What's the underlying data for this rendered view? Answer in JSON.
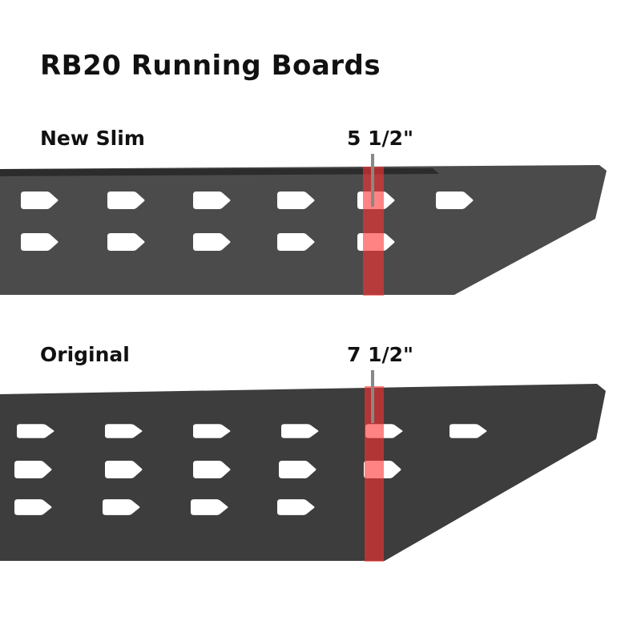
{
  "title": "RB20 Running Boards",
  "boards": [
    {
      "label": "New Slim",
      "measurement": "5 1/2\"",
      "color": "#4a4a4a"
    },
    {
      "label": "Original",
      "measurement": "7 1/2\"",
      "color": "#3c3c3c"
    }
  ],
  "highlight_color": "#e02020"
}
